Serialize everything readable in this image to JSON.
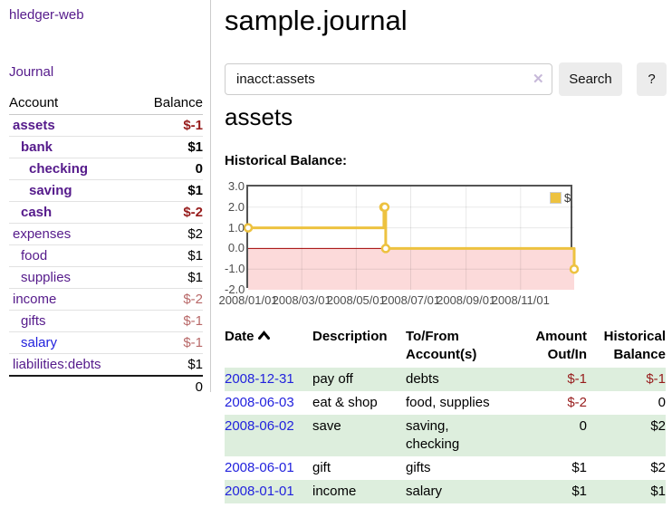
{
  "app": {
    "brand": "hledger-web",
    "nav_journal": "Journal"
  },
  "sidebar": {
    "headers": {
      "account": "Account",
      "balance": "Balance"
    },
    "accounts": [
      {
        "name": "assets",
        "balance": "$-1",
        "depth": 1,
        "bold": true,
        "negative": true,
        "faded": false,
        "link": "purple"
      },
      {
        "name": "bank",
        "balance": "$1",
        "depth": 2,
        "bold": true,
        "negative": false,
        "faded": false,
        "link": "purple"
      },
      {
        "name": "checking",
        "balance": "0",
        "depth": 3,
        "bold": true,
        "negative": false,
        "faded": false,
        "link": "purple"
      },
      {
        "name": "saving",
        "balance": "$1",
        "depth": 3,
        "bold": true,
        "negative": false,
        "faded": false,
        "link": "purple"
      },
      {
        "name": "cash",
        "balance": "$-2",
        "depth": 2,
        "bold": true,
        "negative": true,
        "faded": false,
        "link": "purple"
      },
      {
        "name": "expenses",
        "balance": "$2",
        "depth": 1,
        "bold": false,
        "negative": false,
        "faded": false,
        "link": "purple"
      },
      {
        "name": "food",
        "balance": "$1",
        "depth": 2,
        "bold": false,
        "negative": false,
        "faded": false,
        "link": "purple"
      },
      {
        "name": "supplies",
        "balance": "$1",
        "depth": 2,
        "bold": false,
        "negative": false,
        "faded": false,
        "link": "purple"
      },
      {
        "name": "income",
        "balance": "$-2",
        "depth": 1,
        "bold": false,
        "negative": true,
        "faded": true,
        "link": "purple"
      },
      {
        "name": "gifts",
        "balance": "$-1",
        "depth": 2,
        "bold": false,
        "negative": true,
        "faded": true,
        "link": "purple"
      },
      {
        "name": "salary",
        "balance": "$-1",
        "depth": 2,
        "bold": false,
        "negative": true,
        "faded": true,
        "link": "blue"
      },
      {
        "name": "liabilities:debts",
        "balance": "$1",
        "depth": 1,
        "bold": false,
        "negative": false,
        "faded": false,
        "link": "purple"
      }
    ],
    "total": "0"
  },
  "header": {
    "title": "sample.journal"
  },
  "search": {
    "value": "inacct:assets",
    "clear_icon": "✕",
    "button_label": "Search",
    "help_label": "?"
  },
  "account_page": {
    "heading": "assets",
    "chart_label": "Historical Balance:"
  },
  "chart_data": {
    "type": "line",
    "step": true,
    "title": "Historical Balance:",
    "legend": [
      {
        "label": "$",
        "color": "#edc240"
      }
    ],
    "x": [
      "2008-01-01",
      "2008-06-01",
      "2008-06-02",
      "2008-06-03",
      "2008-12-31"
    ],
    "values": [
      1,
      2,
      2,
      0,
      -1
    ],
    "xlim": [
      "2008-01-01",
      "2008-12-31"
    ],
    "ylim": [
      -2,
      3
    ],
    "x_ticks": [
      "2008/01/01",
      "2008/03/01",
      "2008/05/01",
      "2008/07/01",
      "2008/09/01",
      "2008/11/01"
    ],
    "y_ticks": [
      "3.0",
      "2.0",
      "1.0",
      "0.0",
      "-1.0",
      "-2.0"
    ],
    "grid": true,
    "legend_position": "top-right",
    "line_color": "#edc240",
    "negative_region_color": "#fcdada",
    "zero_line_color": "#a00000"
  },
  "register": {
    "columns": [
      {
        "label": "Date",
        "align": "left",
        "sorted": "asc"
      },
      {
        "label": "Description",
        "align": "left"
      },
      {
        "label": "To/From\nAccount(s)",
        "align": "left"
      },
      {
        "label": "Amount\nOut/In",
        "align": "right"
      },
      {
        "label": "Historical\nBalance",
        "align": "right"
      }
    ],
    "rows": [
      {
        "date": "2008-12-31",
        "description": "pay off",
        "accounts": "debts",
        "amount": "$-1",
        "amount_negative": true,
        "balance": "$-1",
        "balance_negative": true
      },
      {
        "date": "2008-06-03",
        "description": "eat & shop",
        "accounts": "food, supplies",
        "amount": "$-2",
        "amount_negative": true,
        "balance": "0",
        "balance_negative": false
      },
      {
        "date": "2008-06-02",
        "description": "save",
        "accounts": "saving,\nchecking",
        "amount": "0",
        "amount_negative": false,
        "balance": "$2",
        "balance_negative": false
      },
      {
        "date": "2008-06-01",
        "description": "gift",
        "accounts": "gifts",
        "amount": "$1",
        "amount_negative": false,
        "balance": "$2",
        "balance_negative": false
      },
      {
        "date": "2008-01-01",
        "description": "income",
        "accounts": "salary",
        "amount": "$1",
        "amount_negative": false,
        "balance": "$1",
        "balance_negative": false
      }
    ]
  }
}
